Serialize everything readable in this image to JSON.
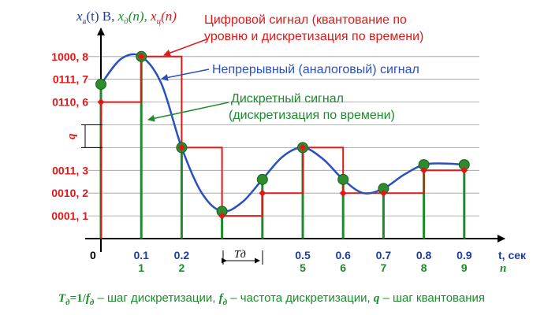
{
  "chart_data": {
    "type": "line",
    "title_parts": [
      {
        "text": "x",
        "color": "#1f3c9c",
        "sub": "a",
        "rest": "(t) В, "
      },
      {
        "text": "x",
        "color": "#1e8a2e",
        "sub": "д",
        "rest": "(n), "
      },
      {
        "text": "x",
        "color": "#e01818",
        "sub": "ц",
        "rest": "(n)"
      }
    ],
    "xlabel": "t, сек",
    "xlabel_n": "n",
    "x_ticks": [
      {
        "t": "0.1",
        "n": "1",
        "x": 0.1
      },
      {
        "t": "0.2",
        "n": "2",
        "x": 0.2
      },
      {
        "t": "0.5",
        "n": "5",
        "x": 0.5
      },
      {
        "t": "0.6",
        "n": "6",
        "x": 0.6
      },
      {
        "t": "0.7",
        "n": "7",
        "x": 0.7
      },
      {
        "t": "0.8",
        "n": "8",
        "x": 0.8
      },
      {
        "t": "0.9",
        "n": "9",
        "x": 0.9
      }
    ],
    "origin_label": "0",
    "y_ticks": [
      {
        "label": "1000, 8",
        "level": 8
      },
      {
        "label": "0111, 7",
        "level": 7
      },
      {
        "label": "0110, 6",
        "level": 6
      },
      {
        "label": "0011, 3",
        "level": 3
      },
      {
        "label": "0010, 2",
        "level": 2
      },
      {
        "label": "0001, 1",
        "level": 1
      }
    ],
    "q_label": "q",
    "td_label": "Tд",
    "xlim": [
      0,
      1.0
    ],
    "ylim": [
      0,
      9.5
    ],
    "analog_curve": [
      [
        0.0,
        6.78
      ],
      [
        0.05,
        7.9
      ],
      [
        0.1,
        8.0
      ],
      [
        0.15,
        6.8
      ],
      [
        0.2,
        4.0
      ],
      [
        0.25,
        2.0
      ],
      [
        0.3,
        1.2
      ],
      [
        0.35,
        1.6
      ],
      [
        0.4,
        2.6
      ],
      [
        0.45,
        3.6
      ],
      [
        0.5,
        4.0
      ],
      [
        0.55,
        3.5
      ],
      [
        0.6,
        2.6
      ],
      [
        0.65,
        2.0
      ],
      [
        0.7,
        2.2
      ],
      [
        0.75,
        2.8
      ],
      [
        0.8,
        3.25
      ],
      [
        0.85,
        3.3
      ],
      [
        0.9,
        3.25
      ]
    ],
    "discrete_samples": [
      {
        "x": 0.0,
        "y": 6.78
      },
      {
        "x": 0.1,
        "y": 8.0
      },
      {
        "x": 0.2,
        "y": 4.0
      },
      {
        "x": 0.3,
        "y": 1.2
      },
      {
        "x": 0.4,
        "y": 2.6
      },
      {
        "x": 0.5,
        "y": 4.0
      },
      {
        "x": 0.6,
        "y": 2.6
      },
      {
        "x": 0.7,
        "y": 2.2
      },
      {
        "x": 0.8,
        "y": 3.25
      },
      {
        "x": 0.9,
        "y": 3.25
      }
    ],
    "digital_levels": [
      {
        "x": 0.0,
        "y": 6
      },
      {
        "x": 0.1,
        "y": 8
      },
      {
        "x": 0.2,
        "y": 4
      },
      {
        "x": 0.3,
        "y": 1
      },
      {
        "x": 0.4,
        "y": 2
      },
      {
        "x": 0.5,
        "y": 4
      },
      {
        "x": 0.6,
        "y": 2
      },
      {
        "x": 0.7,
        "y": 2
      },
      {
        "x": 0.8,
        "y": 3
      },
      {
        "x": 0.9,
        "y": 3
      }
    ],
    "annotations": {
      "digital_line1": "Цифровой сигнал (квантование по",
      "digital_line2": "уровню и дискретизация по времени)",
      "analog": "Непрерывный (аналоговый) сигнал",
      "discrete_line1": "Дискретный сигнал",
      "discrete_line2": "(дискретизация по времени)"
    },
    "colors": {
      "analog": "#2a4fbf",
      "discrete": "#1e8a2e",
      "digital": "#e01818",
      "axis": "#000000",
      "grid": "#9a9a9a",
      "dot": "#2e8b2e"
    },
    "grid": true
  },
  "footer": {
    "p1_a": "T",
    "p1_sub": "д",
    "p1_b": "=1/",
    "p1_c": "f",
    "p1_sub2": "д",
    "p1_rest": " – шаг дискретизации, ",
    "p2_a": "f",
    "p2_sub": "д",
    "p2_rest": " – частота дискретизации, ",
    "p3_a": "q",
    "p3_rest": " – шаг квантования"
  }
}
